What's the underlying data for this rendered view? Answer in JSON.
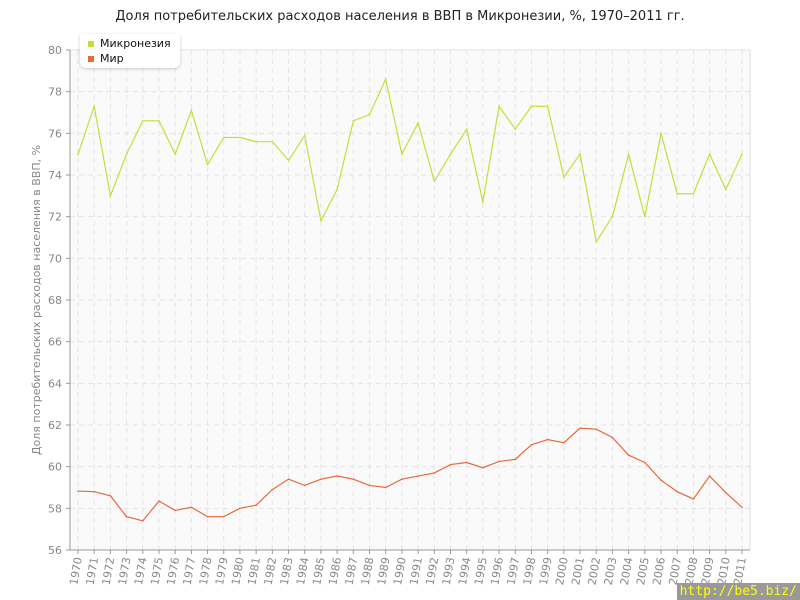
{
  "chart_data": {
    "type": "line",
    "title": "Доля потребительских расходов населения в ВВП в Микронезии, %, 1970–2011 гг.",
    "ylabel": "Доля потребительских расходов населения в ВВП, %",
    "xlabel": "",
    "ylim": [
      56,
      80
    ],
    "yticks": [
      56,
      58,
      60,
      62,
      64,
      66,
      68,
      70,
      72,
      74,
      76,
      78,
      80
    ],
    "grid": true,
    "legend_position": "top-left",
    "x": [
      1970,
      1971,
      1972,
      1973,
      1974,
      1975,
      1976,
      1977,
      1978,
      1979,
      1980,
      1981,
      1982,
      1983,
      1984,
      1985,
      1986,
      1987,
      1988,
      1989,
      1990,
      1991,
      1992,
      1993,
      1994,
      1995,
      1996,
      1997,
      1998,
      1999,
      2000,
      2001,
      2002,
      2003,
      2004,
      2005,
      2006,
      2007,
      2008,
      2009,
      2010,
      2011
    ],
    "series": [
      {
        "name": "Микронезия",
        "color": "#c2df3a",
        "values": [
          75.0,
          77.3,
          73.0,
          75.0,
          76.6,
          76.6,
          75.0,
          77.1,
          74.5,
          75.8,
          75.8,
          75.6,
          75.6,
          74.7,
          75.9,
          71.8,
          73.3,
          76.6,
          76.9,
          78.6,
          75.0,
          76.5,
          73.7,
          75.0,
          76.2,
          72.7,
          77.3,
          76.2,
          77.3,
          77.3,
          73.9,
          75.0,
          70.8,
          72.0,
          75.0,
          72.0,
          76.0,
          73.1,
          73.1,
          75.0,
          73.3,
          75.0
        ]
      },
      {
        "name": "Мир",
        "color": "#e8693a",
        "values": [
          58.83,
          58.8,
          58.6,
          57.6,
          57.4,
          58.35,
          57.9,
          58.05,
          57.6,
          57.6,
          58.0,
          58.15,
          58.9,
          59.4,
          59.1,
          59.4,
          59.55,
          59.4,
          59.1,
          59.0,
          59.4,
          59.55,
          59.7,
          60.1,
          60.2,
          59.95,
          60.25,
          60.35,
          61.05,
          61.3,
          61.15,
          61.85,
          61.8,
          61.4,
          60.55,
          60.2,
          59.35,
          58.8,
          58.45,
          59.55,
          58.75,
          58.05
        ]
      }
    ]
  },
  "watermark": "http://be5.biz/"
}
